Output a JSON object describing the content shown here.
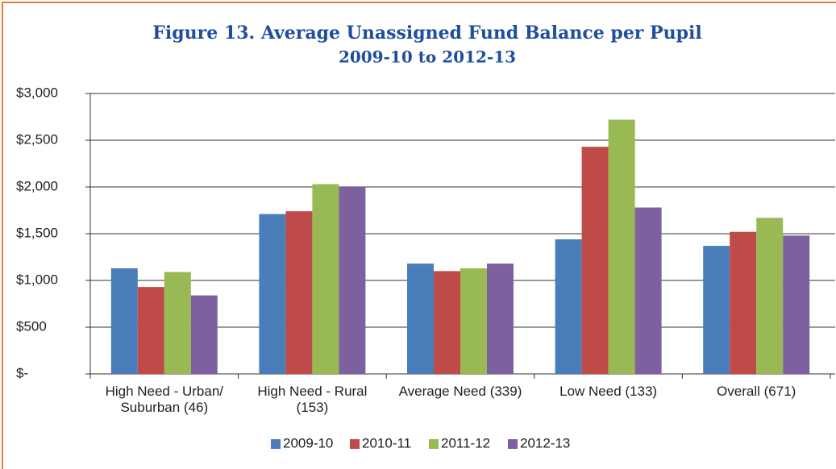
{
  "chart_data": {
    "type": "bar",
    "title": "Figure 13. Average Unassigned Fund Balance per Pupil",
    "subtitle": "2009-10 to 2012-13",
    "categories": [
      "High Need - Urban/ Suburban (46)",
      "High Need - Rural (153)",
      "Average Need (339)",
      "Low Need (133)",
      "Overall (671)"
    ],
    "series": [
      {
        "name": "2009-10",
        "color": "#4a7ebb",
        "values": [
          1130,
          1710,
          1180,
          1440,
          1370
        ]
      },
      {
        "name": "2010-11",
        "color": "#be4b48",
        "values": [
          930,
          1740,
          1100,
          2430,
          1520
        ]
      },
      {
        "name": "2011-12",
        "color": "#98b954",
        "values": [
          1090,
          2030,
          1130,
          2720,
          1670
        ]
      },
      {
        "name": "2012-13",
        "color": "#7d60a0",
        "values": [
          840,
          2000,
          1180,
          1780,
          1480
        ]
      }
    ],
    "ylim": [
      0,
      3000
    ],
    "yticks": [
      {
        "value": 0,
        "label": "$-"
      },
      {
        "value": 500,
        "label": "$500"
      },
      {
        "value": 1000,
        "label": "$1,000"
      },
      {
        "value": 1500,
        "label": "$1,500"
      },
      {
        "value": 2000,
        "label": "$2,000"
      },
      {
        "value": 2500,
        "label": "$2,500"
      },
      {
        "value": 3000,
        "label": "$3,000"
      }
    ],
    "grid": true,
    "legend": "bottom"
  }
}
